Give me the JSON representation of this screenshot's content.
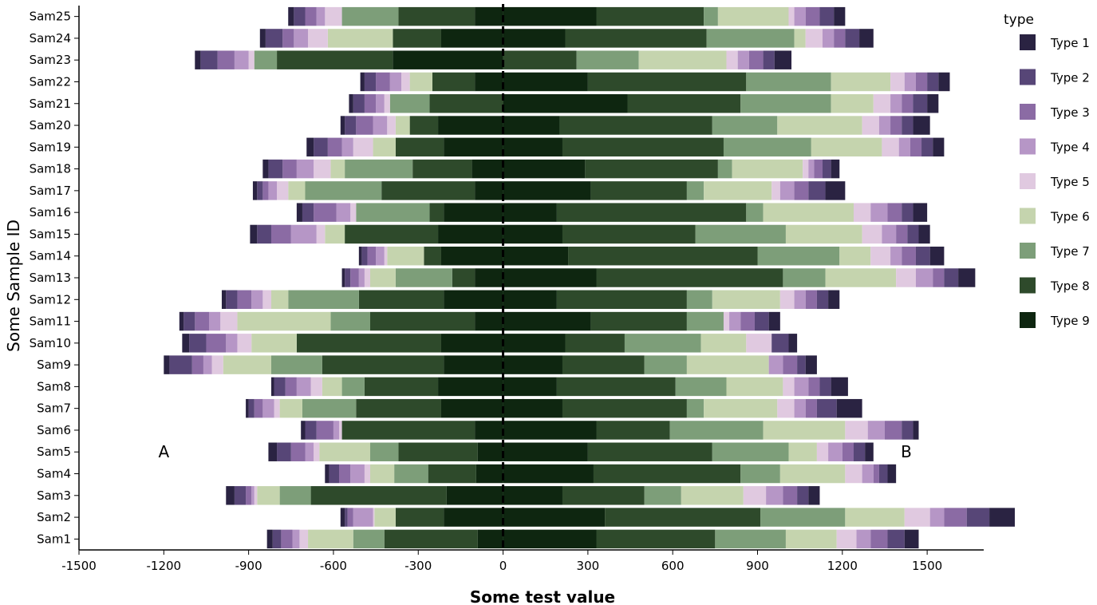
{
  "chart_data": {
    "type": "bar",
    "orientation": "horizontal",
    "xlabel": "Some test value",
    "ylabel": "Some Sample ID",
    "xlim": [
      -1500,
      1700
    ],
    "xticks": [
      -1500,
      -1200,
      -900,
      -600,
      -300,
      0,
      300,
      600,
      900,
      1200,
      1500
    ],
    "legend_title": "type",
    "legend_position": "right",
    "zero_line": "dashed",
    "annotations": [
      {
        "text": "A",
        "x": -1200,
        "row": "Sam5"
      },
      {
        "text": "B",
        "x": 1700,
        "row": "Sam5"
      }
    ],
    "series_names": [
      "Type 1",
      "Type 2",
      "Type 3",
      "Type 4",
      "Type 5",
      "Type 6",
      "Type 7",
      "Type 8",
      "Type 9"
    ],
    "colors": [
      "#2a2342",
      "#574677",
      "#8b6ba4",
      "#b696c6",
      "#e0c9e0",
      "#c5d4ae",
      "#7d9e79",
      "#2e4a2b",
      "#0e2610"
    ],
    "categories": [
      "Sam1",
      "Sam2",
      "Sam3",
      "Sam4",
      "Sam5",
      "Sam6",
      "Sam7",
      "Sam8",
      "Sam9",
      "Sam10",
      "Sam11",
      "Sam12",
      "Sam13",
      "Sam14",
      "Sam15",
      "Sam16",
      "Sam17",
      "Sam18",
      "Sam19",
      "Sam20",
      "Sam21",
      "Sam22",
      "Sam23",
      "Sam24",
      "Sam25"
    ],
    "negative_side": [
      [
        20,
        30,
        40,
        25,
        30,
        160,
        110,
        330,
        90
      ],
      [
        15,
        10,
        20,
        70,
        5,
        75,
        0,
        170,
        210
      ],
      [
        30,
        40,
        20,
        10,
        10,
        80,
        110,
        480,
        200
      ],
      [
        15,
        35,
        40,
        50,
        20,
        85,
        120,
        170,
        95
      ],
      [
        30,
        50,
        50,
        30,
        20,
        180,
        100,
        280,
        90
      ],
      [
        15,
        40,
        60,
        20,
        10,
        0,
        0,
        470,
        100
      ],
      [
        10,
        20,
        30,
        40,
        20,
        80,
        190,
        300,
        220
      ],
      [
        10,
        40,
        40,
        50,
        40,
        70,
        80,
        260,
        230
      ],
      [
        20,
        80,
        40,
        30,
        40,
        170,
        180,
        430,
        210
      ],
      [
        25,
        60,
        70,
        40,
        50,
        160,
        0,
        510,
        220
      ],
      [
        15,
        40,
        50,
        40,
        60,
        330,
        140,
        370,
        100
      ],
      [
        15,
        40,
        50,
        40,
        30,
        60,
        250,
        300,
        210
      ],
      [
        10,
        20,
        30,
        20,
        20,
        90,
        200,
        80,
        100
      ],
      [
        10,
        20,
        30,
        30,
        10,
        130,
        0,
        60,
        220
      ],
      [
        25,
        50,
        70,
        90,
        30,
        70,
        0,
        330,
        230
      ],
      [
        20,
        40,
        80,
        50,
        20,
        0,
        260,
        50,
        210
      ],
      [
        15,
        20,
        20,
        30,
        40,
        60,
        270,
        330,
        100
      ],
      [
        20,
        50,
        50,
        60,
        60,
        50,
        240,
        210,
        110
      ],
      [
        25,
        50,
        50,
        40,
        70,
        80,
        0,
        170,
        210
      ],
      [
        15,
        40,
        60,
        50,
        30,
        50,
        0,
        100,
        230
      ],
      [
        15,
        40,
        40,
        30,
        20,
        0,
        140,
        260,
        0
      ],
      [
        15,
        40,
        50,
        40,
        30,
        80,
        0,
        150,
        100
      ],
      [
        20,
        60,
        60,
        50,
        20,
        0,
        80,
        410,
        390
      ],
      [
        20,
        60,
        40,
        50,
        70,
        230,
        0,
        170,
        220
      ],
      [
        20,
        40,
        40,
        30,
        60,
        0,
        200,
        270,
        100
      ]
    ],
    "positive_side": [
      [
        50,
        60,
        60,
        50,
        70,
        180,
        250,
        420,
        330
      ],
      [
        90,
        80,
        80,
        50,
        90,
        210,
        300,
        550,
        360
      ],
      [
        40,
        40,
        50,
        60,
        80,
        220,
        130,
        290,
        210
      ],
      [
        30,
        30,
        20,
        40,
        60,
        230,
        140,
        520,
        320
      ],
      [
        30,
        40,
        40,
        50,
        40,
        100,
        270,
        440,
        300
      ],
      [
        20,
        40,
        60,
        60,
        80,
        290,
        330,
        260,
        330
      ],
      [
        90,
        70,
        40,
        40,
        60,
        260,
        60,
        440,
        210
      ],
      [
        60,
        40,
        40,
        50,
        40,
        200,
        180,
        420,
        190
      ],
      [
        40,
        30,
        50,
        50,
        0,
        290,
        150,
        290,
        210
      ],
      [
        30,
        60,
        0,
        0,
        90,
        160,
        270,
        210,
        220
      ],
      [
        40,
        50,
        50,
        40,
        20,
        0,
        130,
        340,
        310
      ],
      [
        40,
        40,
        40,
        40,
        50,
        240,
        90,
        460,
        190
      ],
      [
        60,
        50,
        40,
        60,
        70,
        250,
        150,
        660,
        330
      ],
      [
        50,
        50,
        50,
        40,
        70,
        110,
        290,
        670,
        230
      ],
      [
        40,
        40,
        40,
        50,
        70,
        270,
        320,
        470,
        210
      ],
      [
        50,
        40,
        50,
        60,
        60,
        320,
        60,
        670,
        190
      ],
      [
        70,
        60,
        50,
        50,
        30,
        240,
        60,
        340,
        310
      ],
      [
        30,
        30,
        30,
        20,
        20,
        250,
        50,
        470,
        290
      ],
      [
        40,
        40,
        40,
        40,
        60,
        250,
        310,
        570,
        210
      ],
      [
        60,
        40,
        40,
        40,
        60,
        300,
        230,
        540,
        200
      ],
      [
        40,
        50,
        40,
        40,
        60,
        150,
        320,
        400,
        440
      ],
      [
        40,
        40,
        40,
        40,
        50,
        210,
        300,
        560,
        300
      ],
      [
        60,
        40,
        50,
        40,
        40,
        310,
        220,
        260,
        0
      ],
      [
        50,
        50,
        40,
        40,
        60,
        40,
        310,
        500,
        220
      ],
      [
        40,
        50,
        50,
        40,
        20,
        250,
        50,
        380,
        330
      ]
    ]
  }
}
